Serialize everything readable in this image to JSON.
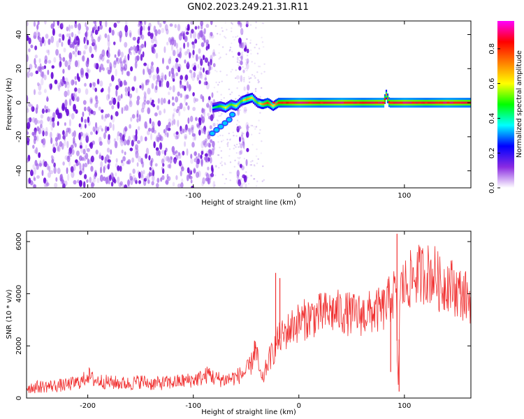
{
  "figure_title": "GN02.2023.249.21.31.R11",
  "chart_data": [
    {
      "type": "heatmap",
      "title": "",
      "xlabel": "Height of straight line (km)",
      "ylabel": "Frequency (Hz)",
      "xlim": [
        -258,
        163
      ],
      "ylim": [
        -50,
        48
      ],
      "xticks": [
        -200,
        -100,
        0,
        100
      ],
      "yticks": [
        -40,
        -20,
        0,
        20,
        40
      ],
      "grid": false,
      "colorbar": {
        "label": "Normalized spectral amplitude",
        "range": [
          0.0,
          0.96
        ],
        "ticks": [
          "0.0",
          "0.2",
          "0.4",
          "0.6",
          "0.8"
        ],
        "colors": [
          "#ffffff",
          "#8a2be2",
          "#0000ff",
          "#00ffff",
          "#00ff00",
          "#ffff00",
          "#ff7f00",
          "#ff0000",
          "#ff00ff"
        ]
      },
      "regions": [
        {
          "description": "scattered purple noise",
          "x_range": [
            -258,
            -80
          ],
          "freq_range": [
            -50,
            48
          ],
          "amplitude": 0.15
        },
        {
          "description": "noise stripe",
          "x_range": [
            -58,
            -48
          ],
          "freq_range": [
            -50,
            48
          ],
          "amplitude": 0.1
        }
      ],
      "ridge": {
        "x": [
          -82,
          -75,
          -70,
          -65,
          -60,
          -55,
          -50,
          -45,
          -40,
          -35,
          -30,
          -25,
          -20,
          -10,
          0,
          20,
          40,
          60,
          80,
          82,
          85,
          100,
          120,
          140,
          163
        ],
        "frequency": [
          -3,
          -2,
          -3,
          -1,
          -2,
          1,
          2,
          3,
          0,
          -1,
          0,
          -2,
          0,
          0,
          0,
          0,
          0,
          0,
          0,
          5,
          0,
          0,
          0,
          0,
          0
        ],
        "amplitude": [
          0.4,
          0.5,
          0.6,
          0.5,
          0.6,
          0.5,
          0.7,
          0.6,
          0.5,
          0.7,
          0.8,
          0.6,
          0.8,
          0.85,
          0.9,
          0.85,
          0.9,
          0.85,
          0.9,
          0.7,
          0.85,
          0.9,
          0.85,
          0.9,
          0.85
        ]
      },
      "branch": {
        "x": [
          -82,
          -78,
          -74,
          -70,
          -66,
          -63
        ],
        "frequency": [
          -18,
          -16,
          -14,
          -12,
          -10,
          -7
        ]
      }
    },
    {
      "type": "line",
      "title": "",
      "xlabel": "Height of straight line (km)",
      "ylabel": "SNR (10 * v/v)",
      "xlim": [
        -258,
        163
      ],
      "ylim": [
        0,
        6400
      ],
      "xticks": [
        -200,
        -100,
        0,
        100
      ],
      "yticks": [
        0,
        2000,
        4000,
        6000
      ],
      "grid": false,
      "series": [
        {
          "color": "#f03030",
          "x": [
            -258,
            -240,
            -220,
            -205,
            -200,
            -195,
            -180,
            -160,
            -150,
            -140,
            -120,
            -100,
            -90,
            -85,
            -80,
            -70,
            -60,
            -55,
            -50,
            -45,
            -42,
            -40,
            -38,
            -35,
            -32,
            -30,
            -28,
            -25,
            -22,
            -20,
            -15,
            -10,
            -5,
            0,
            10,
            20,
            30,
            40,
            50,
            60,
            70,
            80,
            85,
            88,
            92,
            94,
            96,
            100,
            110,
            120,
            130,
            135,
            140,
            150,
            163
          ],
          "y": [
            400,
            450,
            500,
            650,
            900,
            700,
            600,
            550,
            650,
            550,
            600,
            700,
            800,
            950,
            750,
            700,
            800,
            900,
            1000,
            1300,
            1900,
            1700,
            1200,
            600,
            1000,
            1300,
            1500,
            1700,
            2000,
            2200,
            2400,
            2600,
            2800,
            2900,
            3100,
            3200,
            3300,
            3300,
            3200,
            3200,
            3300,
            3400,
            3700,
            3900,
            4100,
            300,
            4200,
            4300,
            4700,
            4800,
            4700,
            4200,
            4500,
            4100,
            3800
          ]
        }
      ],
      "spikes": [
        {
          "x": -42,
          "y": 2200
        },
        {
          "x": -22,
          "y": 4800
        },
        {
          "x": -18,
          "y": 4600
        },
        {
          "x": 87,
          "y": 1000
        },
        {
          "x": 93,
          "y": 6300
        },
        {
          "x": 95,
          "y": 250
        }
      ]
    }
  ]
}
